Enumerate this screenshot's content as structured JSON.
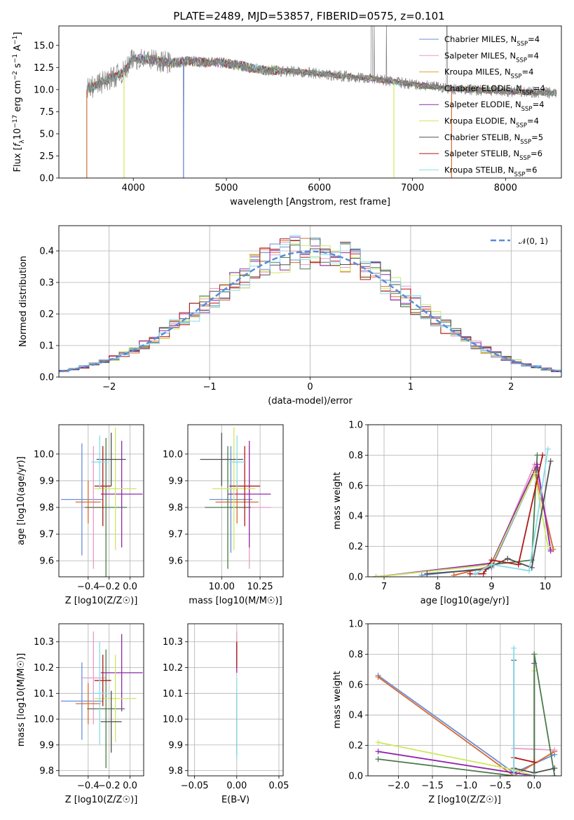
{
  "figure": {
    "title": "PLATE=2489, MJD=53857, FIBERID=0575, z=0.101"
  },
  "chart_data": [
    {
      "id": "spectrum",
      "type": "line",
      "xlabel": "wavelength [Angstrom, rest frame]",
      "ylabel": "Flux [f_λ 10^-17 erg cm^-2 s^-1 A^-1]",
      "xlim": [
        3200,
        8600
      ],
      "ylim": [
        0,
        17.2
      ],
      "xticks": [
        4000,
        5000,
        6000,
        7000,
        8000
      ],
      "yticks": [
        0.0,
        2.5,
        5.0,
        7.5,
        10.0,
        12.5,
        15.0
      ],
      "ytick_labels": [
        "0.0",
        "2.5",
        "5.0",
        "7.5",
        "10.0",
        "12.5",
        "15.0"
      ],
      "legend_position": "top-right",
      "data_range": [
        3500,
        8550
      ],
      "continuum_knots": {
        "x": [
          3500,
          3700,
          3900,
          4000,
          4200,
          4400,
          4600,
          5000,
          5400,
          5800,
          6200,
          6600,
          7000,
          7400,
          8000,
          8550
        ],
        "y": [
          10.0,
          11.0,
          12.0,
          13.5,
          13.4,
          13.0,
          13.2,
          13.0,
          12.2,
          12.0,
          11.6,
          11.2,
          10.6,
          10.1,
          9.8,
          9.6
        ]
      },
      "series": [
        {
          "name": "Chabrier MILES, N_SSP=4",
          "color": "#6a8fd8"
        },
        {
          "name": "Salpeter MILES, N_SSP=4",
          "color": "#e89ac8"
        },
        {
          "name": "Kroupa MILES, N_SSP=4",
          "color": "#d8a838"
        },
        {
          "name": "Chabrier ELODIE, N_SSP=4",
          "color": "#4a7a4a"
        },
        {
          "name": "Salpeter ELODIE, N_SSP=4",
          "color": "#8e2aa8"
        },
        {
          "name": "Kroupa ELODIE, N_SSP=4",
          "color": "#cde860"
        },
        {
          "name": "Chabrier STELIB, N_SSP=5",
          "color": "#505050"
        },
        {
          "name": "Salpeter STELIB, N_SSP=6",
          "color": "#b01818"
        },
        {
          "name": "Kroupa STELIB, N_SSP=6",
          "color": "#88dde8"
        }
      ],
      "data_series": {
        "name": "data",
        "color": "#808080"
      },
      "model_cutoffs": [
        {
          "color": "#d86a30",
          "x": [
            3500,
            7420
          ]
        },
        {
          "color": "#cde860",
          "x": [
            3900,
            6800
          ]
        },
        {
          "color": "#6a8fd8",
          "x": [
            4540,
            4540
          ]
        }
      ]
    },
    {
      "id": "residuals",
      "type": "step",
      "xlabel": "(data-model)/error",
      "ylabel": "Normed distribution",
      "xlim": [
        -2.5,
        2.5
      ],
      "ylim": [
        0,
        0.48
      ],
      "xticks": [
        -2,
        -1,
        0,
        1,
        2
      ],
      "xtick_labels": [
        "−2",
        "−1",
        "0",
        "1",
        "2"
      ],
      "yticks": [
        0.0,
        0.1,
        0.2,
        0.3,
        0.4
      ],
      "ytick_labels": [
        "0.0",
        "0.1",
        "0.2",
        "0.3",
        "0.4"
      ],
      "grid": true,
      "legend_position": "top-right",
      "gaussian": {
        "label": "𝒩(0, 1)",
        "color": "#5b8bd8",
        "mu": 0,
        "sigma": 1
      },
      "bin_width": 0.1,
      "series_colors": [
        "#6a8fd8",
        "#e89ac8",
        "#d86a30",
        "#4a7a4a",
        "#8e2aa8",
        "#cde860",
        "#505050",
        "#b01818",
        "#88dde8"
      ]
    },
    {
      "id": "age-vs-Z",
      "type": "errorbar",
      "xlabel": "Z [log10(Z/Z☉)]",
      "ylabel": "age [log10(age/yr)]",
      "xlim": [
        -0.68,
        0.13
      ],
      "ylim": [
        9.54,
        10.11
      ],
      "xticks": [
        -0.4,
        -0.2,
        0.0
      ],
      "xtick_labels": [
        "−0.4",
        "−0.2",
        "0.0"
      ],
      "yticks": [
        9.6,
        9.7,
        9.8,
        9.9,
        10.0
      ],
      "ytick_labels": [
        "9.6",
        "9.7",
        "9.8",
        "9.9",
        "10.0"
      ],
      "grid": true,
      "points": [
        {
          "color": "#6a8fd8",
          "x": -0.46,
          "xerr": 0.2,
          "y": 9.83,
          "yerr": 0.21
        },
        {
          "color": "#e89ac8",
          "x": -0.35,
          "xerr": 0.1,
          "y": 9.8,
          "yerr": 0.23
        },
        {
          "color": "#d86a30",
          "x": -0.4,
          "xerr": 0.12,
          "y": 9.82,
          "yerr": 0.08
        },
        {
          "color": "#4a7a4a",
          "x": -0.23,
          "xerr": 0.2,
          "y": 9.8,
          "yerr": 0.26
        },
        {
          "color": "#8e2aa8",
          "x": -0.08,
          "xerr": 0.2,
          "y": 9.85,
          "yerr": 0.2
        },
        {
          "color": "#cde860",
          "x": -0.14,
          "xerr": 0.2,
          "y": 9.87,
          "yerr": 0.23
        },
        {
          "color": "#505050",
          "x": -0.18,
          "xerr": 0.14,
          "y": 9.98,
          "yerr": 0.1
        },
        {
          "color": "#b01818",
          "x": -0.26,
          "xerr": 0.08,
          "y": 9.88,
          "yerr": 0.15
        },
        {
          "color": "#88dde8",
          "x": -0.29,
          "xerr": 0.08,
          "y": 9.97,
          "yerr": 0.1
        }
      ]
    },
    {
      "id": "age-vs-mass",
      "type": "errorbar",
      "xlabel": "mass [log10(M/M☉)]",
      "ylabel": "",
      "xlim": [
        9.78,
        10.4
      ],
      "ylim": [
        9.54,
        10.11
      ],
      "xticks": [
        10.0,
        10.25
      ],
      "xtick_labels": [
        "10.00",
        "10.25"
      ],
      "yticks": [
        9.6,
        9.7,
        9.8,
        9.9,
        10.0
      ],
      "ytick_labels": [
        "9.6",
        "9.7",
        "9.8",
        "9.9",
        "10.0"
      ],
      "grid": true,
      "points": [
        {
          "color": "#6a8fd8",
          "x": 10.06,
          "xerr": 0.14,
          "y": 9.83,
          "yerr": 0.2
        },
        {
          "color": "#e89ac8",
          "x": 10.18,
          "xerr": 0.14,
          "y": 9.8,
          "yerr": 0.23
        },
        {
          "color": "#d86a30",
          "x": 10.1,
          "xerr": 0.14,
          "y": 9.82,
          "yerr": 0.08
        },
        {
          "color": "#4a7a4a",
          "x": 10.04,
          "xerr": 0.15,
          "y": 9.8,
          "yerr": 0.23
        },
        {
          "color": "#8e2aa8",
          "x": 10.18,
          "xerr": 0.14,
          "y": 9.85,
          "yerr": 0.2
        },
        {
          "color": "#cde860",
          "x": 10.08,
          "xerr": 0.14,
          "y": 9.87,
          "yerr": 0.23
        },
        {
          "color": "#505050",
          "x": 10.0,
          "xerr": 0.14,
          "y": 9.98,
          "yerr": 0.1
        },
        {
          "color": "#b01818",
          "x": 10.15,
          "xerr": 0.1,
          "y": 9.88,
          "yerr": 0.15
        },
        {
          "color": "#88dde8",
          "x": 10.1,
          "xerr": 0.05,
          "y": 9.97,
          "yerr": 0.1
        }
      ]
    },
    {
      "id": "mass-weight-vs-age",
      "type": "line",
      "xlabel": "age [log10(age/yr)]",
      "ylabel": "mass weight",
      "xlim": [
        6.7,
        10.3
      ],
      "ylim": [
        0,
        1.0
      ],
      "xticks": [
        7,
        8,
        9,
        10
      ],
      "xtick_labels": [
        "7",
        "8",
        "9",
        "10"
      ],
      "yticks": [
        0.0,
        0.2,
        0.4,
        0.6,
        0.8,
        1.0
      ],
      "ytick_labels": [
        "0.0",
        "0.2",
        "0.4",
        "0.6",
        "0.8",
        "1.0"
      ],
      "grid": true,
      "series": [
        {
          "color": "#6a8fd8",
          "x": [
            7.7,
            9.0,
            9.85,
            10.1
          ],
          "y": [
            0.01,
            0.06,
            0.72,
            0.18
          ]
        },
        {
          "color": "#e89ac8",
          "x": [
            8.3,
            9.0,
            9.8,
            10.15
          ],
          "y": [
            0.01,
            0.07,
            0.74,
            0.18
          ]
        },
        {
          "color": "#d86a30",
          "x": [
            8.3,
            9.0,
            9.8,
            10.15
          ],
          "y": [
            0.01,
            0.07,
            0.7,
            0.18
          ]
        },
        {
          "color": "#4a7a4a",
          "x": [
            6.85,
            9.0,
            9.75,
            9.85
          ],
          "y": [
            0.0,
            0.08,
            0.11,
            0.8
          ]
        },
        {
          "color": "#8e2aa8",
          "x": [
            6.85,
            9.0,
            9.85,
            10.1
          ],
          "y": [
            0.0,
            0.09,
            0.74,
            0.17
          ]
        },
        {
          "color": "#cde860",
          "x": [
            6.85,
            9.0,
            9.8,
            10.05
          ],
          "y": [
            0.0,
            0.08,
            0.68,
            0.2
          ]
        },
        {
          "color": "#505050",
          "x": [
            7.8,
            8.9,
            9.3,
            9.75,
            10.1
          ],
          "y": [
            0.02,
            0.05,
            0.12,
            0.06,
            0.76
          ]
        },
        {
          "color": "#b01818",
          "x": [
            8.6,
            8.85,
            9.0,
            9.5,
            9.95
          ],
          "y": [
            0.02,
            0.02,
            0.11,
            0.08,
            0.8
          ]
        },
        {
          "color": "#88dde8",
          "x": [
            8.7,
            9.0,
            9.7,
            10.05
          ],
          "y": [
            0.02,
            0.08,
            0.04,
            0.84
          ]
        }
      ]
    },
    {
      "id": "mass-vs-Z",
      "type": "errorbar",
      "xlabel": "Z [log10(Z/Z☉)]",
      "ylabel": "mass [log10(M/M☉)]",
      "xlim": [
        -0.68,
        0.13
      ],
      "ylim": [
        9.78,
        10.37
      ],
      "xticks": [
        -0.4,
        -0.2,
        0.0
      ],
      "xtick_labels": [
        "−0.4",
        "−0.2",
        "0.0"
      ],
      "yticks": [
        9.8,
        9.9,
        10.0,
        10.1,
        10.2,
        10.3
      ],
      "ytick_labels": [
        "9.8",
        "9.9",
        "10.0",
        "10.1",
        "10.2",
        "10.3"
      ],
      "grid": true,
      "points": [
        {
          "color": "#6a8fd8",
          "x": -0.46,
          "xerr": 0.2,
          "y": 10.07,
          "yerr": 0.15
        },
        {
          "color": "#e89ac8",
          "x": -0.35,
          "xerr": 0.12,
          "y": 10.16,
          "yerr": 0.18
        },
        {
          "color": "#d86a30",
          "x": -0.4,
          "xerr": 0.12,
          "y": 10.06,
          "yerr": 0.08
        },
        {
          "color": "#4a7a4a",
          "x": -0.23,
          "xerr": 0.18,
          "y": 10.04,
          "yerr": 0.23
        },
        {
          "color": "#8e2aa8",
          "x": -0.08,
          "xerr": 0.2,
          "y": 10.18,
          "yerr": 0.15
        },
        {
          "color": "#cde860",
          "x": -0.14,
          "xerr": 0.2,
          "y": 10.08,
          "yerr": 0.17
        },
        {
          "color": "#505050",
          "x": -0.18,
          "xerr": 0.1,
          "y": 9.99,
          "yerr": 0.12
        },
        {
          "color": "#b01818",
          "x": -0.26,
          "xerr": 0.08,
          "y": 10.15,
          "yerr": 0.1
        },
        {
          "color": "#88dde8",
          "x": -0.29,
          "xerr": 0.08,
          "y": 10.1,
          "yerr": 0.2
        }
      ]
    },
    {
      "id": "mass-vs-ebv",
      "type": "errorbar",
      "xlabel": "E(B-V)",
      "ylabel": "",
      "xlim": [
        -0.058,
        0.055
      ],
      "ylim": [
        9.78,
        10.37
      ],
      "xticks": [
        -0.05,
        0.0,
        0.05
      ],
      "xtick_labels": [
        "−0.05",
        "0.00",
        "0.05"
      ],
      "yticks": [
        9.8,
        9.9,
        10.0,
        10.1,
        10.2,
        10.3
      ],
      "ytick_labels": [
        "9.8",
        "9.9",
        "10.0",
        "10.1",
        "10.2",
        "10.3"
      ],
      "grid": true,
      "points": [
        {
          "color": "#e89ac8",
          "x": 0.0,
          "xerr": 0,
          "y": 10.26,
          "yerr": 0.08
        },
        {
          "color": "#8e2aa8",
          "x": 0.0,
          "xerr": 0,
          "y": 10.24,
          "yerr": 0.06
        },
        {
          "color": "#b01818",
          "x": 0.0,
          "xerr": 0,
          "y": 10.25,
          "yerr": 0.05
        },
        {
          "color": "#4a7a4a",
          "x": 0.0,
          "xerr": 0,
          "y": 9.98,
          "yerr": 0.12
        },
        {
          "color": "#88dde8",
          "x": 0.0,
          "xerr": 0,
          "y": 10.0,
          "yerr": 0.16
        }
      ]
    },
    {
      "id": "mass-weight-vs-Z",
      "type": "line",
      "xlabel": "Z [log10(Z/Z☉)]",
      "ylabel": "mass weight",
      "xlim": [
        -2.45,
        0.4
      ],
      "ylim": [
        0,
        1.0
      ],
      "xticks": [
        -2.0,
        -1.5,
        -1.0,
        -0.5,
        0.0
      ],
      "xtick_labels": [
        "−2.0",
        "−1.5",
        "−1.0",
        "−0.5",
        "0.0"
      ],
      "yticks": [
        0.0,
        0.2,
        0.4,
        0.6,
        0.8,
        1.0
      ],
      "ytick_labels": [
        "0.0",
        "0.2",
        "0.4",
        "0.6",
        "0.8",
        "1.0"
      ],
      "grid": true,
      "series": [
        {
          "color": "#6a8fd8",
          "x": [
            -2.3,
            -0.3,
            0.3
          ],
          "y": [
            0.66,
            0.02,
            0.14
          ]
        },
        {
          "color": "#d86a30",
          "x": [
            -2.3,
            -0.3,
            0.3
          ],
          "y": [
            0.65,
            0.0,
            0.16
          ]
        },
        {
          "color": "#e89ac8",
          "x": [
            -0.3,
            0.3
          ],
          "y": [
            0.18,
            0.17
          ]
        },
        {
          "color": "#cde860",
          "x": [
            -2.3,
            -0.3,
            0.0,
            0.0
          ],
          "y": [
            0.22,
            0.04,
            0.0,
            0.69
          ]
        },
        {
          "color": "#8e2aa8",
          "x": [
            -2.3,
            -0.3,
            0.0,
            0.0
          ],
          "y": [
            0.16,
            0.02,
            0.0,
            0.74
          ]
        },
        {
          "color": "#4a7a4a",
          "x": [
            -2.3,
            -0.3,
            0.0,
            0.0,
            0.3
          ],
          "y": [
            0.11,
            0.0,
            0.0,
            0.8,
            0.0
          ]
        },
        {
          "color": "#505050",
          "x": [
            -0.3,
            -0.3,
            0.0,
            0.3
          ],
          "y": [
            0.76,
            0.05,
            0.02,
            0.05
          ]
        },
        {
          "color": "#b01818",
          "x": [
            -0.3,
            0.0
          ],
          "y": [
            0.12,
            0.09
          ]
        },
        {
          "color": "#88dde8",
          "x": [
            -0.3,
            -0.3,
            0.0
          ],
          "y": [
            0.84,
            0.0,
            0.0
          ]
        }
      ]
    }
  ]
}
